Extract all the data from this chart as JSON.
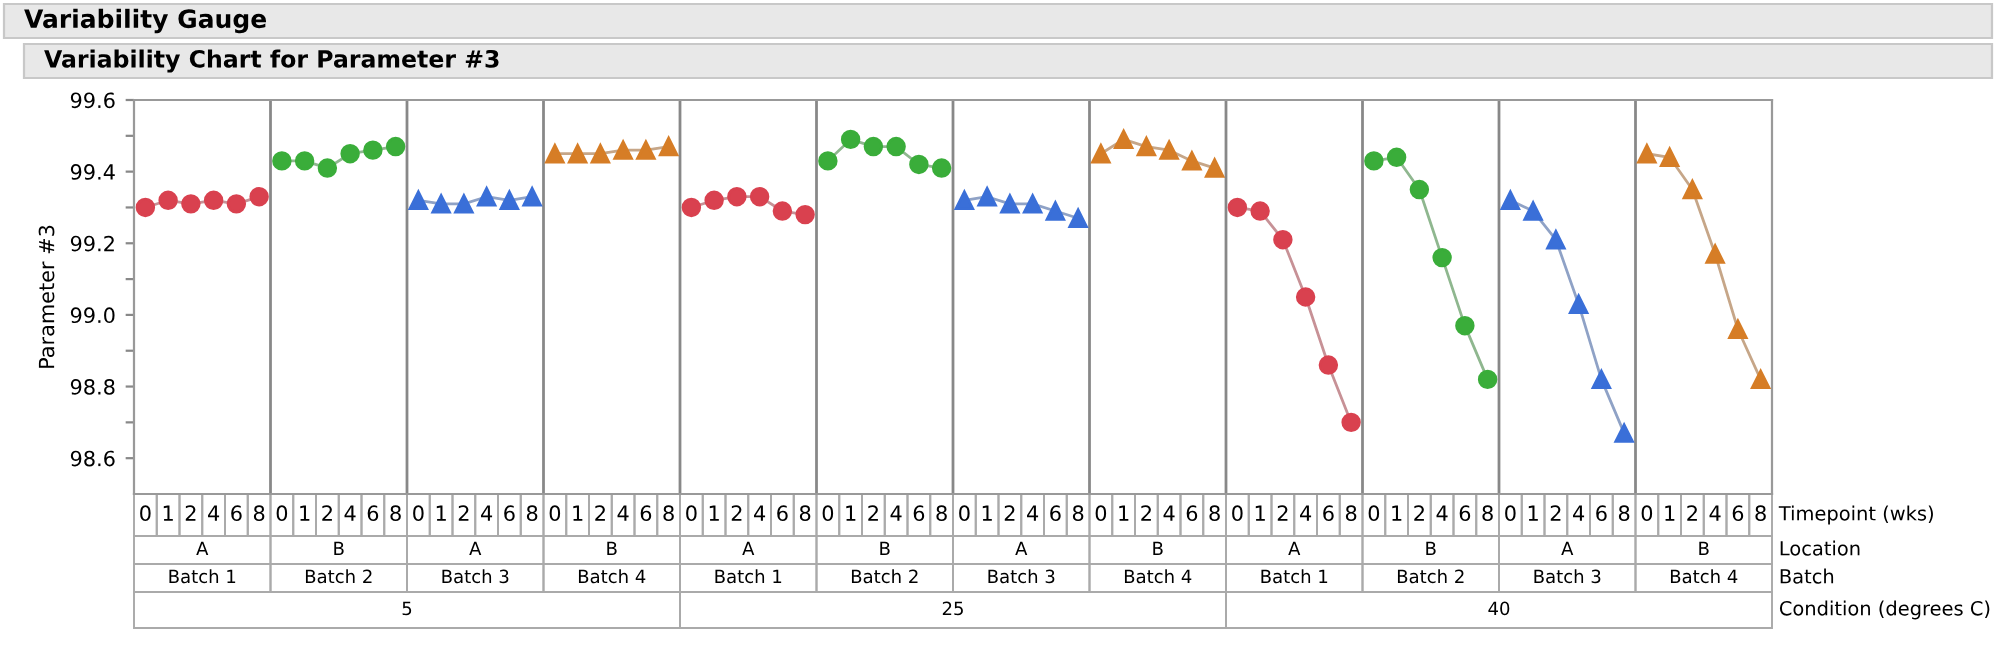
{
  "chart_data": {
    "type": "line",
    "title": "Variability Gauge",
    "subtitle": "Variability Chart for Parameter #3",
    "ylabel": "Parameter #3",
    "categories": [
      "0",
      "1",
      "2",
      "4",
      "6",
      "8",
      "0",
      "1",
      "2",
      "4",
      "6",
      "8",
      "0",
      "1",
      "2",
      "4",
      "6",
      "8",
      "0",
      "1",
      "2",
      "4",
      "6",
      "8",
      "0",
      "1",
      "2",
      "4",
      "6",
      "8",
      "0",
      "1",
      "2",
      "4",
      "6",
      "8",
      "0",
      "1",
      "2",
      "4",
      "6",
      "8",
      "0",
      "1",
      "2",
      "4",
      "6",
      "8",
      "0",
      "1",
      "2",
      "4",
      "6",
      "8",
      "0",
      "1",
      "2",
      "4",
      "6",
      "8",
      "0",
      "1",
      "2",
      "4",
      "6",
      "8",
      "0",
      "1",
      "2",
      "4",
      "6",
      "8"
    ],
    "series": [
      {
        "color": "#d9414f",
        "marker": "circle",
        "values": [
          99.3,
          99.32,
          99.31,
          99.32,
          99.31,
          99.33,
          null,
          null,
          null,
          null,
          null,
          null,
          null,
          null,
          null,
          null,
          null,
          null,
          null,
          null,
          null,
          null,
          null,
          null,
          99.3,
          99.32,
          99.33,
          99.33,
          99.29,
          99.28,
          null,
          null,
          null,
          null,
          null,
          null,
          null,
          null,
          null,
          null,
          null,
          null,
          null,
          null,
          null,
          null,
          null,
          null,
          99.3,
          99.29,
          99.21,
          99.05,
          98.86,
          98.7,
          null,
          null,
          null,
          null,
          null,
          null,
          null,
          null,
          null,
          null,
          null,
          null,
          null,
          null,
          null,
          null,
          null,
          null
        ]
      },
      {
        "color": "#3aad3a",
        "marker": "circle",
        "values": [
          null,
          null,
          null,
          null,
          null,
          null,
          99.43,
          99.43,
          99.41,
          99.45,
          99.46,
          99.47,
          null,
          null,
          null,
          null,
          null,
          null,
          null,
          null,
          null,
          null,
          null,
          null,
          null,
          null,
          null,
          null,
          null,
          null,
          99.43,
          99.49,
          99.47,
          99.47,
          99.42,
          99.41,
          null,
          null,
          null,
          null,
          null,
          null,
          null,
          null,
          null,
          null,
          null,
          null,
          null,
          null,
          null,
          null,
          null,
          null,
          99.43,
          99.44,
          99.35,
          99.16,
          98.97,
          98.82,
          null,
          null,
          null,
          null,
          null,
          null,
          null,
          null,
          null,
          null,
          null,
          null
        ]
      },
      {
        "color": "#3a6fd8",
        "marker": "triangle",
        "values": [
          null,
          null,
          null,
          null,
          null,
          null,
          null,
          null,
          null,
          null,
          null,
          null,
          99.32,
          99.31,
          99.31,
          99.33,
          99.32,
          99.33,
          null,
          null,
          null,
          null,
          null,
          null,
          null,
          null,
          null,
          null,
          null,
          null,
          null,
          null,
          null,
          null,
          null,
          null,
          99.32,
          99.33,
          99.31,
          99.31,
          99.29,
          99.27,
          null,
          null,
          null,
          null,
          null,
          null,
          null,
          null,
          null,
          null,
          null,
          null,
          null,
          null,
          null,
          null,
          null,
          null,
          99.32,
          99.29,
          99.21,
          99.03,
          98.82,
          98.67,
          null,
          null,
          null,
          null,
          null,
          null
        ]
      },
      {
        "color": "#d67d26",
        "marker": "triangle",
        "values": [
          null,
          null,
          null,
          null,
          null,
          null,
          null,
          null,
          null,
          null,
          null,
          null,
          null,
          null,
          null,
          null,
          null,
          null,
          99.45,
          99.45,
          99.45,
          99.46,
          99.46,
          99.47,
          null,
          null,
          null,
          null,
          null,
          null,
          null,
          null,
          null,
          null,
          null,
          null,
          null,
          null,
          null,
          null,
          null,
          null,
          99.45,
          99.49,
          99.47,
          99.46,
          99.43,
          99.41,
          null,
          null,
          null,
          null,
          null,
          null,
          null,
          null,
          null,
          null,
          null,
          null,
          null,
          null,
          null,
          null,
          null,
          null,
          99.45,
          99.44,
          99.35,
          99.17,
          98.96,
          98.82
        ]
      }
    ],
    "ylim": [
      98.5,
      99.6
    ],
    "yticks": [
      98.6,
      {
        "value": 98.7,
        "label": null
      },
      98.8,
      {
        "value": 98.9,
        "label": null
      },
      {
        "value": 99.0,
        "label": "99.0"
      },
      {
        "value": 99.1,
        "label": null
      },
      99.2,
      {
        "value": 99.3,
        "label": null
      },
      99.4,
      {
        "value": 99.5,
        "label": null
      },
      99.6
    ],
    "grid": false,
    "legend": false,
    "annotations": [
      "A",
      "B",
      "A",
      "B",
      "A",
      "B",
      "A",
      "B",
      "A",
      "B",
      "A",
      "B",
      "Batch 1",
      "Batch 2",
      "Batch 3",
      "Batch 4",
      "Batch 1",
      "Batch 2",
      "Batch 3",
      "Batch 4",
      "Batch 1",
      "Batch 2",
      "Batch 3",
      "Batch 4",
      "5",
      "25",
      "40",
      "Timepoint (wks)",
      "Location",
      "Batch",
      "Condition (degrees C)"
    ]
  }
}
